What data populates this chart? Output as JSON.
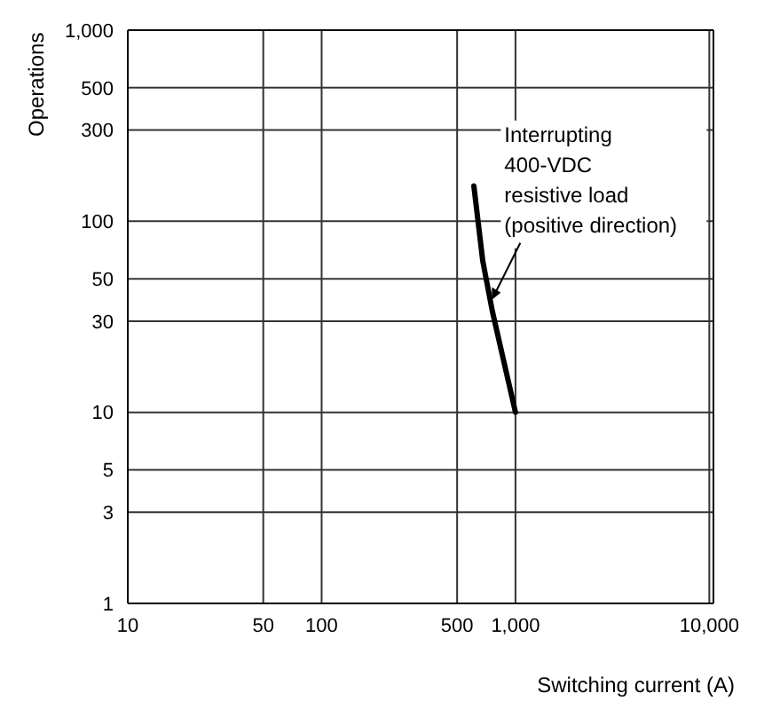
{
  "chart_data": {
    "type": "line",
    "xlabel": "Switching current (A)",
    "ylabel": "Operations",
    "x": [
      610,
      678,
      759,
      865,
      1000
    ],
    "series": [
      {
        "color": "#000000",
        "values": [
          153,
          62,
          34,
          19,
          10
        ]
      }
    ],
    "log": "xy",
    "xlim": [
      10,
      10500
    ],
    "ylim": [
      1,
      1000
    ],
    "xticks": [
      10,
      50,
      100,
      500,
      {
        "value": 1000,
        "label": "1,000"
      },
      {
        "value": 10000,
        "label": "10,000"
      }
    ],
    "yticks": [
      1,
      3,
      5,
      10,
      30,
      50,
      100,
      300,
      500,
      {
        "value": 1000,
        "label": "1,000"
      }
    ],
    "grid": true,
    "marker": "none",
    "line_style": "solid",
    "annotations": [
      {
        "text": "Interrupting\n400-VDC\nresistive load\n(positive direction)",
        "x": 740,
        "y": 38
      }
    ]
  }
}
